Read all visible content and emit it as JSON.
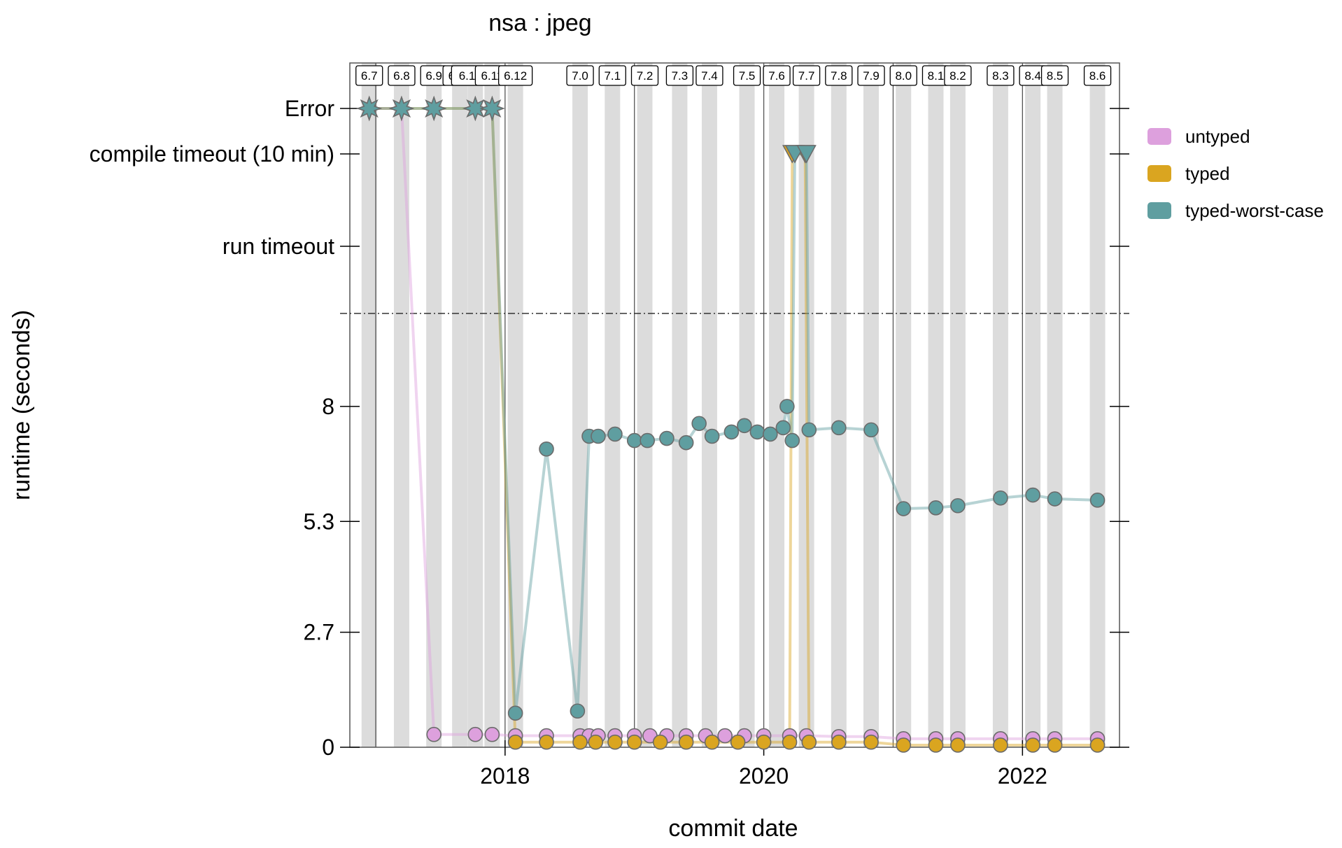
{
  "chart_data": {
    "type": "line",
    "title": "nsa : jpeg",
    "xlabel": "commit date",
    "ylabel": "runtime (seconds)",
    "x_ticks": [
      "2018",
      "2020",
      "2022"
    ],
    "x_tick_values": [
      2018.0,
      2020.0,
      2022.0
    ],
    "xlim": [
      2016.8,
      2022.75
    ],
    "ylim": [
      0,
      9.0
    ],
    "y_ticks": [
      "0",
      "2.7",
      "5.3",
      "8"
    ],
    "y_tick_values": [
      0,
      2.7,
      5.3,
      8.0
    ],
    "special_y_ticks": [
      "run timeout",
      "compile timeout (10 min)",
      "Error"
    ],
    "legend_position": "right",
    "grid": false,
    "reference_line": "dash-dot horizontal separator between numeric runtimes and timeout/error categories",
    "year_lines": [
      2017,
      2018,
      2019,
      2020,
      2021,
      2022
    ],
    "releases": [
      {
        "label": "6.7",
        "x": 2016.95
      },
      {
        "label": "6.8",
        "x": 2017.2
      },
      {
        "label": "6.9",
        "x": 2017.45
      },
      {
        "label": "6.10",
        "x": 2017.65
      },
      {
        "label": "6.10.1",
        "x": 2017.77
      },
      {
        "label": "6.11",
        "x": 2017.9
      },
      {
        "label": "6.12",
        "x": 2018.08
      },
      {
        "label": "7.0",
        "x": 2018.58
      },
      {
        "label": "7.1",
        "x": 2018.83
      },
      {
        "label": "7.2",
        "x": 2019.08
      },
      {
        "label": "7.3",
        "x": 2019.35
      },
      {
        "label": "7.4",
        "x": 2019.58
      },
      {
        "label": "7.5",
        "x": 2019.87
      },
      {
        "label": "7.6",
        "x": 2020.1
      },
      {
        "label": "7.7",
        "x": 2020.33
      },
      {
        "label": "7.8",
        "x": 2020.58
      },
      {
        "label": "7.9",
        "x": 2020.83
      },
      {
        "label": "8.0",
        "x": 2021.08
      },
      {
        "label": "8.1",
        "x": 2021.33
      },
      {
        "label": "8.2",
        "x": 2021.5
      },
      {
        "label": "8.3",
        "x": 2021.83
      },
      {
        "label": "8.4",
        "x": 2022.08
      },
      {
        "label": "8.5",
        "x": 2022.25
      },
      {
        "label": "8.6",
        "x": 2022.58
      }
    ],
    "series": [
      {
        "name": "untyped",
        "color": "#dda0dd",
        "points": [
          {
            "x": 2016.95,
            "y": "Error"
          },
          {
            "x": 2017.2,
            "y": "Error"
          },
          {
            "x": 2017.45,
            "y": 0.3
          },
          {
            "x": 2017.77,
            "y": 0.3
          },
          {
            "x": 2017.9,
            "y": 0.3
          },
          {
            "x": 2018.08,
            "y": 0.27
          },
          {
            "x": 2018.32,
            "y": 0.27
          },
          {
            "x": 2018.58,
            "y": 0.27
          },
          {
            "x": 2018.65,
            "y": 0.27
          },
          {
            "x": 2018.72,
            "y": 0.27
          },
          {
            "x": 2018.85,
            "y": 0.27
          },
          {
            "x": 2019.0,
            "y": 0.27
          },
          {
            "x": 2019.12,
            "y": 0.27
          },
          {
            "x": 2019.25,
            "y": 0.27
          },
          {
            "x": 2019.4,
            "y": 0.27
          },
          {
            "x": 2019.55,
            "y": 0.27
          },
          {
            "x": 2019.7,
            "y": 0.27
          },
          {
            "x": 2019.85,
            "y": 0.27
          },
          {
            "x": 2020.0,
            "y": 0.27
          },
          {
            "x": 2020.2,
            "y": 0.27
          },
          {
            "x": 2020.33,
            "y": 0.27
          },
          {
            "x": 2020.58,
            "y": 0.25
          },
          {
            "x": 2020.83,
            "y": 0.25
          },
          {
            "x": 2021.08,
            "y": 0.2
          },
          {
            "x": 2021.33,
            "y": 0.2
          },
          {
            "x": 2021.5,
            "y": 0.2
          },
          {
            "x": 2021.83,
            "y": 0.2
          },
          {
            "x": 2022.08,
            "y": 0.2
          },
          {
            "x": 2022.25,
            "y": 0.2
          },
          {
            "x": 2022.58,
            "y": 0.2
          }
        ]
      },
      {
        "name": "typed",
        "color": "#daa520",
        "points": [
          {
            "x": 2016.95,
            "y": "Error"
          },
          {
            "x": 2017.2,
            "y": "Error"
          },
          {
            "x": 2017.45,
            "y": "Error"
          },
          {
            "x": 2017.77,
            "y": "Error"
          },
          {
            "x": 2017.9,
            "y": "Error"
          },
          {
            "x": 2018.08,
            "y": 0.12
          },
          {
            "x": 2018.32,
            "y": 0.12
          },
          {
            "x": 2018.58,
            "y": 0.12
          },
          {
            "x": 2018.7,
            "y": 0.12
          },
          {
            "x": 2018.85,
            "y": 0.12
          },
          {
            "x": 2019.0,
            "y": 0.12
          },
          {
            "x": 2019.2,
            "y": 0.12
          },
          {
            "x": 2019.4,
            "y": 0.12
          },
          {
            "x": 2019.6,
            "y": 0.12
          },
          {
            "x": 2019.8,
            "y": 0.12
          },
          {
            "x": 2020.0,
            "y": 0.12
          },
          {
            "x": 2020.2,
            "y": 0.12
          },
          {
            "x": 2020.22,
            "y": "compile timeout (10 min)"
          },
          {
            "x": 2020.32,
            "y": "compile timeout (10 min)"
          },
          {
            "x": 2020.35,
            "y": 0.12
          },
          {
            "x": 2020.58,
            "y": 0.12
          },
          {
            "x": 2020.83,
            "y": 0.12
          },
          {
            "x": 2021.08,
            "y": 0.05
          },
          {
            "x": 2021.33,
            "y": 0.05
          },
          {
            "x": 2021.5,
            "y": 0.05
          },
          {
            "x": 2021.83,
            "y": 0.05
          },
          {
            "x": 2022.08,
            "y": 0.05
          },
          {
            "x": 2022.25,
            "y": 0.05
          },
          {
            "x": 2022.58,
            "y": 0.05
          }
        ]
      },
      {
        "name": "typed-worst-case",
        "color": "#5f9ea0",
        "points": [
          {
            "x": 2016.95,
            "y": "Error"
          },
          {
            "x": 2017.2,
            "y": "Error"
          },
          {
            "x": 2017.45,
            "y": "Error"
          },
          {
            "x": 2017.77,
            "y": "Error"
          },
          {
            "x": 2017.9,
            "y": "Error"
          },
          {
            "x": 2018.08,
            "y": 0.8
          },
          {
            "x": 2018.32,
            "y": 7.0
          },
          {
            "x": 2018.56,
            "y": 0.85
          },
          {
            "x": 2018.65,
            "y": 7.3
          },
          {
            "x": 2018.72,
            "y": 7.3
          },
          {
            "x": 2018.85,
            "y": 7.35
          },
          {
            "x": 2019.0,
            "y": 7.2
          },
          {
            "x": 2019.1,
            "y": 7.2
          },
          {
            "x": 2019.25,
            "y": 7.25
          },
          {
            "x": 2019.4,
            "y": 7.15
          },
          {
            "x": 2019.5,
            "y": 7.6
          },
          {
            "x": 2019.6,
            "y": 7.3
          },
          {
            "x": 2019.75,
            "y": 7.4
          },
          {
            "x": 2019.85,
            "y": 7.55
          },
          {
            "x": 2019.95,
            "y": 7.4
          },
          {
            "x": 2020.05,
            "y": 7.35
          },
          {
            "x": 2020.15,
            "y": 7.5
          },
          {
            "x": 2020.18,
            "y": 8.0
          },
          {
            "x": 2020.22,
            "y": 7.2
          },
          {
            "x": 2020.24,
            "y": "compile timeout (10 min)"
          },
          {
            "x": 2020.33,
            "y": "compile timeout (10 min)"
          },
          {
            "x": 2020.35,
            "y": 7.45
          },
          {
            "x": 2020.58,
            "y": 7.5
          },
          {
            "x": 2020.83,
            "y": 7.45
          },
          {
            "x": 2021.08,
            "y": 5.6
          },
          {
            "x": 2021.33,
            "y": 5.62
          },
          {
            "x": 2021.5,
            "y": 5.67
          },
          {
            "x": 2021.83,
            "y": 5.85
          },
          {
            "x": 2022.08,
            "y": 5.92
          },
          {
            "x": 2022.25,
            "y": 5.83
          },
          {
            "x": 2022.58,
            "y": 5.8
          }
        ]
      }
    ]
  }
}
